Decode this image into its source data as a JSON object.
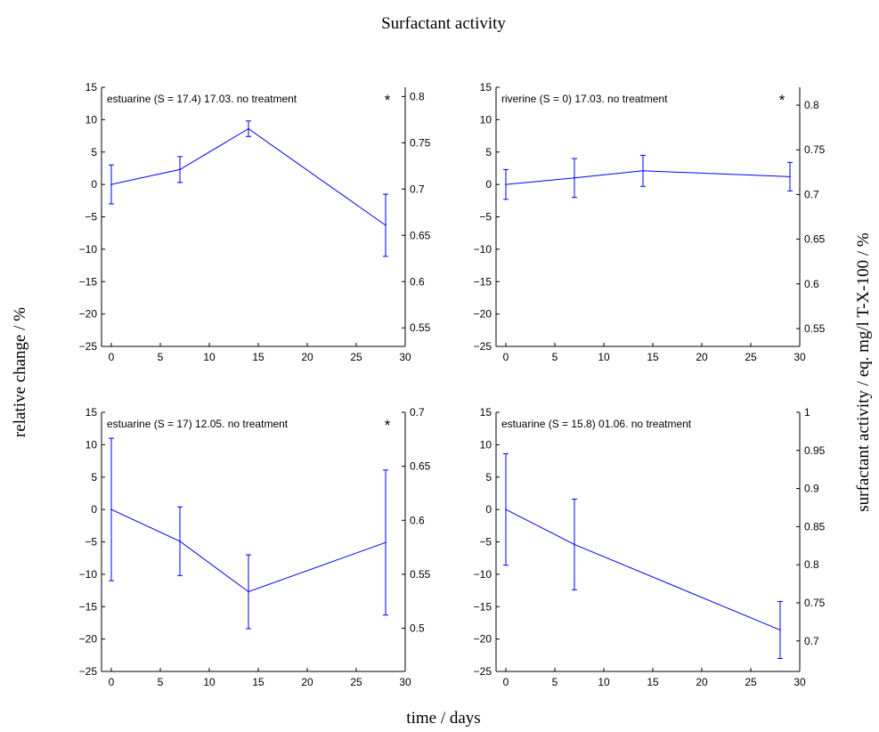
{
  "figure": {
    "title": "Surfactant activity",
    "xlabel": "time / days",
    "ylabel_left": "relative change / %",
    "ylabel_right": "surfactant activity / eq. mg/l T-X-100 / %"
  },
  "colors": {
    "line": "#0000ff",
    "axes": "#000000",
    "background": "#ffffff"
  },
  "chart_data": [
    {
      "type": "line",
      "title": "estuarine (S = 17.4) 17.03. no treatment",
      "marker": "*",
      "xlim": [
        -1,
        30
      ],
      "xticks": [
        0,
        5,
        10,
        15,
        20,
        25,
        30
      ],
      "ylim": [
        -25,
        15
      ],
      "yticks": [
        -25,
        -20,
        -15,
        -10,
        -5,
        0,
        5,
        10,
        15
      ],
      "y2lim": [
        0.53,
        0.81
      ],
      "y2ticks": [
        0.55,
        0.6,
        0.65,
        0.7,
        0.75,
        0.8
      ],
      "grid": false,
      "x": [
        0,
        7,
        14,
        28
      ],
      "y": [
        0,
        2.3,
        8.6,
        -6.3
      ],
      "err": [
        3.0,
        2.0,
        1.2,
        4.8
      ]
    },
    {
      "type": "line",
      "title": "riverine (S = 0) 17.03. no treatment",
      "marker": "*",
      "xlim": [
        -1,
        30
      ],
      "xticks": [
        0,
        5,
        10,
        15,
        20,
        25,
        30
      ],
      "ylim": [
        -25,
        15
      ],
      "yticks": [
        -25,
        -20,
        -15,
        -10,
        -5,
        0,
        5,
        10,
        15
      ],
      "y2lim": [
        0.53,
        0.82
      ],
      "y2ticks": [
        0.55,
        0.6,
        0.65,
        0.7,
        0.75,
        0.8
      ],
      "grid": false,
      "x": [
        0,
        7,
        14,
        29
      ],
      "y": [
        0,
        1.0,
        2.1,
        1.2
      ],
      "err": [
        2.3,
        3.0,
        2.4,
        2.2
      ]
    },
    {
      "type": "line",
      "title": "estuarine (S = 17) 12.05. no treatment",
      "marker": "*",
      "xlim": [
        -1,
        30
      ],
      "xticks": [
        0,
        5,
        10,
        15,
        20,
        25,
        30
      ],
      "ylim": [
        -25,
        15
      ],
      "yticks": [
        -25,
        -20,
        -15,
        -10,
        -5,
        0,
        5,
        10,
        15
      ],
      "y2lim": [
        0.46,
        0.7
      ],
      "y2ticks": [
        0.5,
        0.55,
        0.6,
        0.65,
        0.7
      ],
      "grid": false,
      "x": [
        0,
        7,
        14,
        28
      ],
      "y": [
        0,
        -4.9,
        -12.7,
        -5.1
      ],
      "err": [
        11.0,
        5.3,
        5.7,
        11.2
      ]
    },
    {
      "type": "line",
      "title": "estuarine (S = 15.8) 01.06. no treatment",
      "marker": "",
      "xlim": [
        -1,
        30
      ],
      "xticks": [
        0,
        5,
        10,
        15,
        20,
        25,
        30
      ],
      "ylim": [
        -25,
        15
      ],
      "yticks": [
        -25,
        -20,
        -15,
        -10,
        -5,
        0,
        5,
        10,
        15
      ],
      "y2lim": [
        0.66,
        1.0
      ],
      "y2ticks": [
        0.7,
        0.75,
        0.8,
        0.85,
        0.9,
        0.95,
        1
      ],
      "grid": false,
      "x": [
        0,
        7,
        28
      ],
      "y": [
        0,
        -5.4,
        -18.6
      ],
      "err": [
        8.6,
        7.0,
        4.4
      ]
    }
  ]
}
